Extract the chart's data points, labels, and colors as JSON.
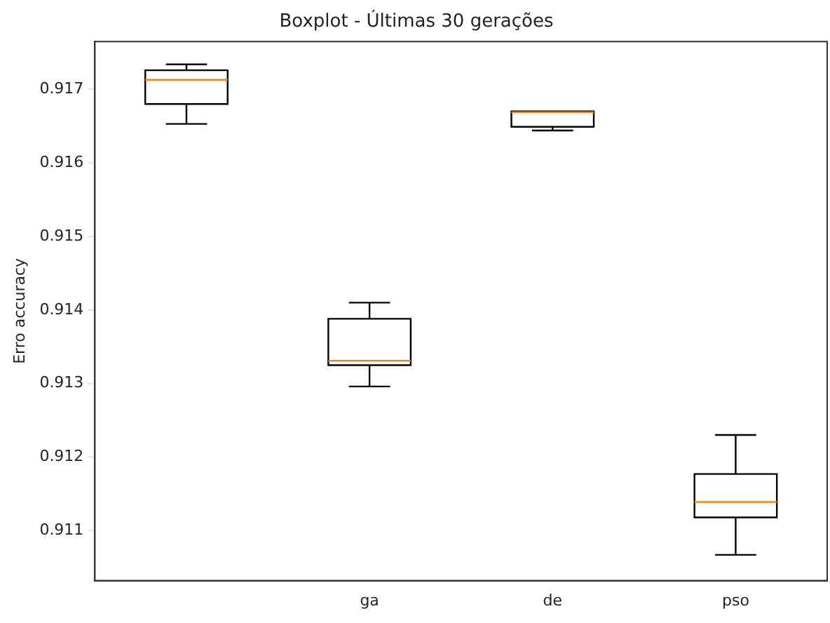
{
  "chart_data": {
    "type": "box",
    "title": "Boxplot - Últimas 30 gerações",
    "ylabel": "Erro accuracy",
    "categories": [
      null,
      "ga",
      "de",
      "pso"
    ],
    "series": [
      {
        "color": "#000000",
        "boxes": [
          {
            "low": 0.91653,
            "q1": 0.9168,
            "median": 0.91713,
            "q3": 0.91726,
            "high": 0.91734
          },
          {
            "low": 0.91296,
            "q1": 0.91325,
            "median": 0.91331,
            "q3": 0.91388,
            "high": 0.9141
          },
          {
            "low": 0.91644,
            "q1": 0.91649,
            "median": 0.91669,
            "q3": 0.9167,
            "high": 0.9167
          },
          {
            "low": 0.91067,
            "q1": 0.91118,
            "median": 0.91139,
            "q3": 0.91177,
            "high": 0.9123
          }
        ]
      }
    ],
    "ylim": [
      0.91032,
      0.91765
    ],
    "yticks": [
      0.911,
      0.912,
      0.913,
      0.914,
      0.915,
      0.916,
      0.917
    ],
    "grid": false
  }
}
